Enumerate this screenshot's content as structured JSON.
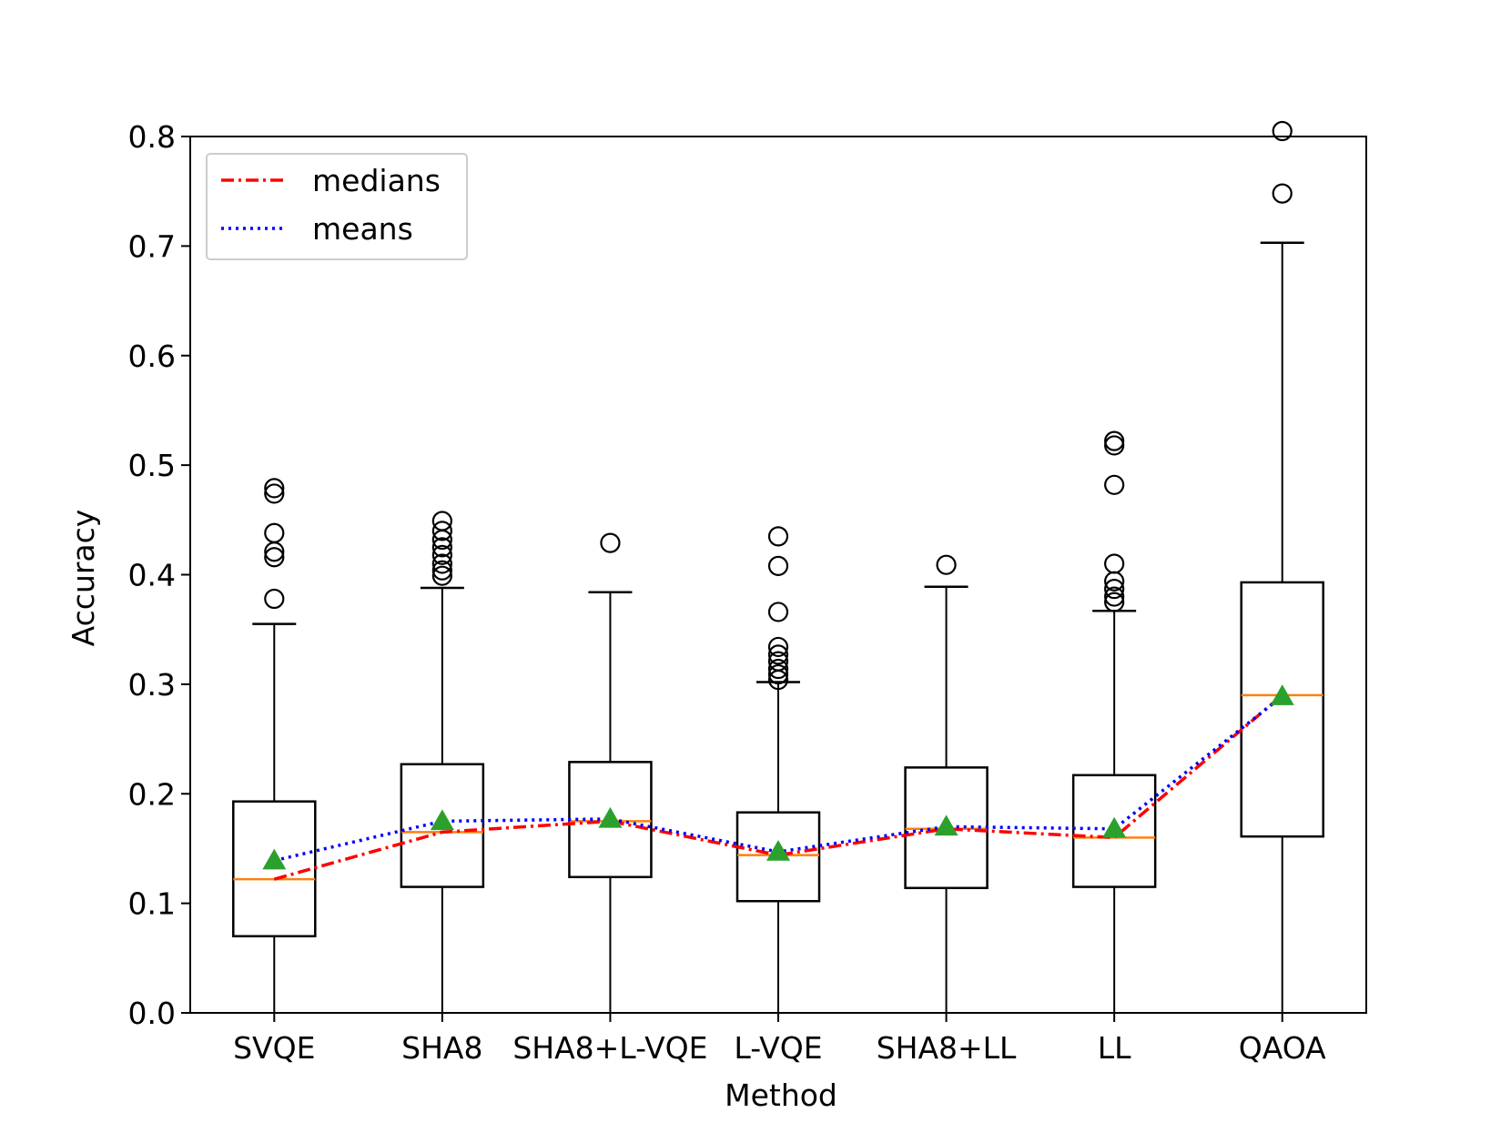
{
  "chart_data": {
    "type": "box",
    "title": "",
    "xlabel": "Method",
    "ylabel": "Accuracy",
    "ylim": [
      0.0,
      0.8
    ],
    "yticks": [
      "0.0",
      "0.1",
      "0.2",
      "0.3",
      "0.4",
      "0.5",
      "0.6",
      "0.7",
      "0.8"
    ],
    "categories": [
      "SVQE",
      "SHA8",
      "SHA8+L-VQE",
      "L-VQE",
      "SHA8+LL",
      "LL",
      "QAOA"
    ],
    "boxes": [
      {
        "name": "SVQE",
        "whisker_low": 0.0,
        "q1": 0.07,
        "median": 0.122,
        "q3": 0.193,
        "whisker_high": 0.355,
        "mean": 0.139,
        "outliers": [
          0.378,
          0.416,
          0.421,
          0.438,
          0.474,
          0.479
        ]
      },
      {
        "name": "SHA8",
        "whisker_low": 0.0,
        "q1": 0.115,
        "median": 0.165,
        "q3": 0.227,
        "whisker_high": 0.388,
        "mean": 0.175,
        "outliers": [
          0.399,
          0.404,
          0.41,
          0.418,
          0.425,
          0.432,
          0.44,
          0.449
        ]
      },
      {
        "name": "SHA8+L-VQE",
        "whisker_low": 0.0,
        "q1": 0.124,
        "median": 0.175,
        "q3": 0.229,
        "whisker_high": 0.384,
        "mean": 0.177,
        "outliers": [
          0.429
        ]
      },
      {
        "name": "L-VQE",
        "whisker_low": 0.0,
        "q1": 0.102,
        "median": 0.144,
        "q3": 0.183,
        "whisker_high": 0.302,
        "mean": 0.147,
        "outliers": [
          0.304,
          0.309,
          0.314,
          0.321,
          0.327,
          0.334,
          0.366,
          0.408,
          0.435
        ]
      },
      {
        "name": "SHA8+LL",
        "whisker_low": 0.0,
        "q1": 0.114,
        "median": 0.168,
        "q3": 0.224,
        "whisker_high": 0.389,
        "mean": 0.17,
        "outliers": [
          0.409
        ]
      },
      {
        "name": "LL",
        "whisker_low": 0.0,
        "q1": 0.115,
        "median": 0.16,
        "q3": 0.217,
        "whisker_high": 0.367,
        "mean": 0.168,
        "outliers": [
          0.375,
          0.38,
          0.387,
          0.394,
          0.41,
          0.482,
          0.518,
          0.522
        ]
      },
      {
        "name": "QAOA",
        "whisker_low": 0.0,
        "q1": 0.161,
        "median": 0.29,
        "q3": 0.393,
        "whisker_high": 0.703,
        "mean": 0.289,
        "outliers": [
          0.748,
          0.805
        ]
      }
    ],
    "series": [
      {
        "name": "medians",
        "style": "dash-dot",
        "color": "#ff0000",
        "values": [
          0.122,
          0.165,
          0.175,
          0.144,
          0.168,
          0.16,
          0.29
        ]
      },
      {
        "name": "means",
        "style": "dotted",
        "color": "#0000ff",
        "values": [
          0.139,
          0.175,
          0.177,
          0.147,
          0.17,
          0.168,
          0.289
        ]
      }
    ],
    "legend": {
      "position": "top-left",
      "entries": [
        "medians",
        "means"
      ]
    },
    "colors": {
      "box": "#000000",
      "median_line": "#ff7f0e",
      "mean_marker": "#2ca02c",
      "medians": "#ff0000",
      "means": "#0000ff"
    },
    "grid": false
  }
}
